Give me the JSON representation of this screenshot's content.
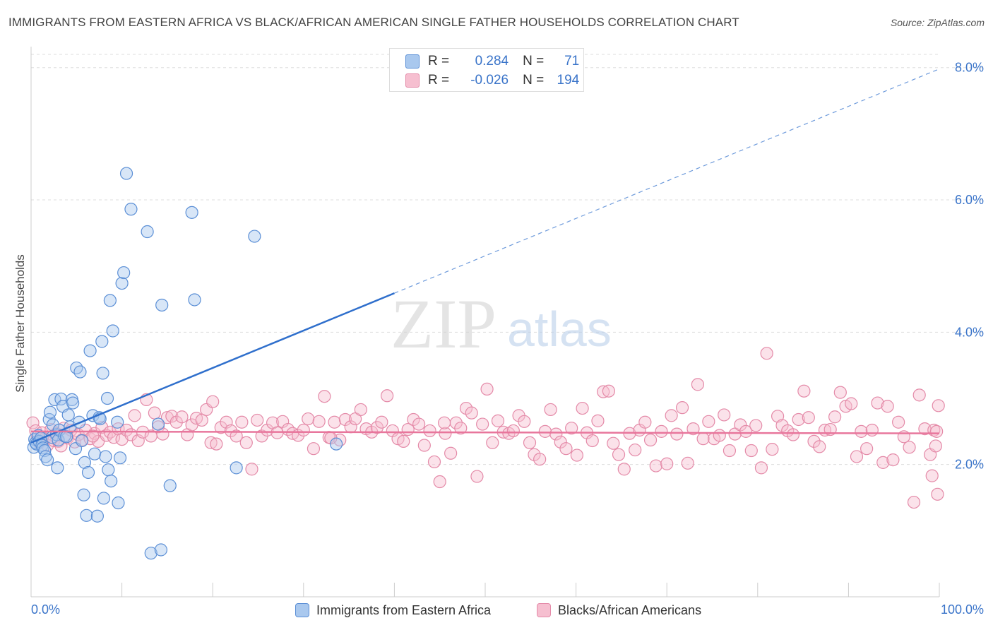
{
  "title": "IMMIGRANTS FROM EASTERN AFRICA VS BLACK/AFRICAN AMERICAN SINGLE FATHER HOUSEHOLDS CORRELATION CHART",
  "source": "Source: ZipAtlas.com",
  "watermark": {
    "zip": "ZIP",
    "atlas": "atlas"
  },
  "colors": {
    "blue_fill": "#a9c8ee",
    "blue_stroke": "#5b8fd6",
    "blue_line": "#2f6fcc",
    "pink_fill": "#f6bfd0",
    "pink_stroke": "#e48aa8",
    "pink_line": "#e8769c",
    "axis_label": "#3a74c9",
    "grid": "#dddddd"
  },
  "stats": {
    "blue": {
      "r_label": "R =",
      "r_value": "0.284",
      "n_label": "N =",
      "n_value": "71"
    },
    "pink": {
      "r_label": "R =",
      "r_value": "-0.026",
      "n_label": "N =",
      "n_value": "194"
    }
  },
  "chart_data": {
    "type": "scatter",
    "title": "IMMIGRANTS FROM EASTERN AFRICA VS BLACK/AFRICAN AMERICAN SINGLE FATHER HOUSEHOLDS CORRELATION CHART",
    "xlabel": "",
    "ylabel": "Single Father Households",
    "xlim": [
      0,
      100
    ],
    "ylim": [
      0,
      8.2
    ],
    "x_tick_labels": [
      "0.0%",
      "100.0%"
    ],
    "y_ticks": [
      2,
      4,
      6,
      8
    ],
    "y_tick_labels": [
      "2.0%",
      "4.0%",
      "6.0%",
      "8.0%"
    ],
    "grid": "horizontal dashed",
    "legend": "bottom",
    "series": [
      {
        "name": "Immigrants from Eastern Africa",
        "color": "#5b8fd6",
        "trend": {
          "x": [
            0,
            100
          ],
          "y": [
            2.33,
            7.98
          ],
          "solid_until_x": 40
        },
        "points": [
          [
            0.3,
            2.26
          ],
          [
            0.4,
            2.38
          ],
          [
            0.5,
            2.33
          ],
          [
            0.6,
            2.31
          ],
          [
            0.8,
            2.44
          ],
          [
            0.9,
            2.35
          ],
          [
            1.1,
            2.4
          ],
          [
            1.2,
            2.29
          ],
          [
            1.3,
            2.25
          ],
          [
            1.5,
            2.21
          ],
          [
            1.6,
            2.12
          ],
          [
            1.8,
            2.07
          ],
          [
            2.0,
            2.68
          ],
          [
            2.1,
            2.79
          ],
          [
            2.3,
            2.41
          ],
          [
            2.4,
            2.6
          ],
          [
            2.6,
            2.98
          ],
          [
            2.8,
            2.45
          ],
          [
            3.0,
            2.37
          ],
          [
            3.1,
            2.52
          ],
          [
            2.9,
            1.95
          ],
          [
            3.3,
            2.99
          ],
          [
            3.5,
            2.88
          ],
          [
            3.7,
            2.43
          ],
          [
            3.9,
            2.42
          ],
          [
            4.1,
            2.75
          ],
          [
            4.3,
            2.57
          ],
          [
            4.5,
            2.98
          ],
          [
            4.6,
            2.93
          ],
          [
            4.9,
            2.24
          ],
          [
            5.0,
            3.46
          ],
          [
            5.3,
            2.64
          ],
          [
            5.4,
            3.4
          ],
          [
            5.6,
            2.36
          ],
          [
            5.8,
            1.54
          ],
          [
            5.9,
            2.03
          ],
          [
            6.1,
            1.23
          ],
          [
            6.3,
            1.88
          ],
          [
            6.5,
            3.72
          ],
          [
            6.8,
            2.74
          ],
          [
            7.0,
            2.16
          ],
          [
            7.3,
            1.22
          ],
          [
            7.5,
            2.71
          ],
          [
            7.6,
            2.69
          ],
          [
            7.8,
            3.86
          ],
          [
            7.9,
            3.38
          ],
          [
            8.0,
            1.49
          ],
          [
            8.2,
            2.12
          ],
          [
            8.4,
            3.0
          ],
          [
            8.5,
            1.92
          ],
          [
            8.7,
            4.48
          ],
          [
            8.8,
            1.75
          ],
          [
            9.0,
            4.02
          ],
          [
            9.5,
            2.64
          ],
          [
            9.6,
            1.42
          ],
          [
            9.8,
            2.1
          ],
          [
            10.0,
            4.74
          ],
          [
            10.2,
            4.9
          ],
          [
            10.5,
            6.4
          ],
          [
            11.0,
            5.86
          ],
          [
            12.8,
            5.52
          ],
          [
            13.2,
            0.66
          ],
          [
            14.0,
            2.61
          ],
          [
            14.3,
            0.71
          ],
          [
            14.4,
            4.41
          ],
          [
            15.3,
            1.68
          ],
          [
            17.7,
            5.81
          ],
          [
            18.0,
            4.49
          ],
          [
            22.6,
            1.95
          ],
          [
            24.6,
            5.45
          ],
          [
            33.6,
            2.31
          ]
        ]
      },
      {
        "name": "Blacks/African Americans",
        "color": "#e48aa8",
        "trend": {
          "x": [
            0,
            100
          ],
          "y": [
            2.5,
            2.47
          ]
        },
        "points": [
          [
            0.2,
            2.63
          ],
          [
            0.5,
            2.51
          ],
          [
            0.7,
            2.42
          ],
          [
            0.9,
            2.33
          ],
          [
            1.2,
            2.48
          ],
          [
            1.5,
            2.39
          ],
          [
            1.8,
            2.29
          ],
          [
            2.2,
            2.53
          ],
          [
            2.5,
            2.36
          ],
          [
            2.8,
            2.47
          ],
          [
            3.0,
            2.35
          ],
          [
            3.3,
            2.28
          ],
          [
            3.6,
            2.55
          ],
          [
            4.0,
            2.4
          ],
          [
            4.4,
            2.52
          ],
          [
            4.8,
            2.34
          ],
          [
            5.2,
            2.45
          ],
          [
            5.6,
            2.37
          ],
          [
            6.0,
            2.52
          ],
          [
            6.5,
            2.39
          ],
          [
            7.0,
            2.47
          ],
          [
            7.4,
            2.35
          ],
          [
            7.8,
            2.56
          ],
          [
            8.3,
            2.44
          ],
          [
            8.7,
            2.49
          ],
          [
            9.1,
            2.41
          ],
          [
            9.6,
            2.54
          ],
          [
            10.0,
            2.38
          ],
          [
            10.5,
            2.52
          ],
          [
            11.0,
            2.45
          ],
          [
            11.4,
            2.74
          ],
          [
            11.8,
            2.36
          ],
          [
            12.3,
            2.49
          ],
          [
            12.7,
            2.98
          ],
          [
            13.2,
            2.43
          ],
          [
            13.6,
            2.78
          ],
          [
            14.0,
            2.57
          ],
          [
            14.5,
            2.46
          ],
          [
            15.0,
            2.71
          ],
          [
            15.5,
            2.73
          ],
          [
            16.0,
            2.64
          ],
          [
            16.6,
            2.72
          ],
          [
            17.2,
            2.45
          ],
          [
            17.7,
            2.6
          ],
          [
            18.2,
            2.7
          ],
          [
            18.8,
            2.67
          ],
          [
            19.3,
            2.83
          ],
          [
            19.8,
            2.33
          ],
          [
            20.4,
            2.31
          ],
          [
            20.9,
            2.56
          ],
          [
            21.5,
            2.64
          ],
          [
            22.0,
            2.51
          ],
          [
            22.6,
            2.43
          ],
          [
            23.2,
            2.64
          ],
          [
            23.7,
            2.33
          ],
          [
            24.3,
            1.93
          ],
          [
            24.9,
            2.67
          ],
          [
            25.4,
            2.43
          ],
          [
            26.0,
            2.52
          ],
          [
            26.6,
            2.63
          ],
          [
            27.1,
            2.48
          ],
          [
            27.7,
            2.65
          ],
          [
            28.3,
            2.53
          ],
          [
            28.8,
            2.47
          ],
          [
            29.4,
            2.44
          ],
          [
            30.0,
            2.52
          ],
          [
            30.5,
            2.69
          ],
          [
            31.1,
            2.24
          ],
          [
            31.7,
            2.65
          ],
          [
            32.3,
            3.03
          ],
          [
            32.8,
            2.41
          ],
          [
            33.4,
            2.64
          ],
          [
            34.0,
            2.37
          ],
          [
            34.6,
            2.68
          ],
          [
            35.2,
            2.57
          ],
          [
            35.7,
            2.69
          ],
          [
            36.3,
            2.83
          ],
          [
            36.9,
            2.54
          ],
          [
            37.5,
            2.49
          ],
          [
            38.1,
            2.56
          ],
          [
            38.6,
            2.64
          ],
          [
            39.2,
            3.04
          ],
          [
            39.8,
            2.51
          ],
          [
            40.4,
            2.39
          ],
          [
            41.0,
            2.35
          ],
          [
            41.5,
            2.53
          ],
          [
            42.1,
            2.68
          ],
          [
            42.7,
            2.61
          ],
          [
            43.3,
            2.29
          ],
          [
            43.9,
            2.51
          ],
          [
            44.4,
            2.04
          ],
          [
            45.0,
            1.74
          ],
          [
            45.6,
            2.47
          ],
          [
            46.2,
            2.17
          ],
          [
            46.8,
            2.63
          ],
          [
            47.3,
            2.55
          ],
          [
            47.9,
            2.85
          ],
          [
            48.5,
            2.78
          ],
          [
            49.1,
            1.82
          ],
          [
            49.7,
            2.61
          ],
          [
            50.2,
            3.14
          ],
          [
            50.8,
            2.33
          ],
          [
            51.4,
            2.66
          ],
          [
            52.0,
            2.49
          ],
          [
            52.6,
            2.47
          ],
          [
            53.1,
            2.51
          ],
          [
            53.7,
            2.74
          ],
          [
            54.3,
            2.65
          ],
          [
            54.9,
            2.33
          ],
          [
            55.4,
            2.15
          ],
          [
            56.0,
            2.08
          ],
          [
            56.6,
            2.5
          ],
          [
            57.2,
            2.83
          ],
          [
            57.8,
            2.46
          ],
          [
            58.3,
            2.34
          ],
          [
            58.9,
            2.24
          ],
          [
            59.5,
            2.55
          ],
          [
            60.1,
            2.14
          ],
          [
            60.7,
            2.85
          ],
          [
            61.2,
            2.48
          ],
          [
            61.8,
            2.36
          ],
          [
            62.4,
            2.66
          ],
          [
            63.0,
            3.1
          ],
          [
            63.6,
            3.11
          ],
          [
            64.1,
            2.32
          ],
          [
            64.7,
            2.15
          ],
          [
            65.3,
            1.93
          ],
          [
            65.9,
            2.47
          ],
          [
            66.5,
            2.22
          ],
          [
            67.0,
            2.52
          ],
          [
            67.6,
            2.64
          ],
          [
            68.2,
            2.37
          ],
          [
            68.8,
            1.98
          ],
          [
            69.4,
            2.5
          ],
          [
            70.0,
            2.01
          ],
          [
            70.5,
            2.74
          ],
          [
            71.1,
            2.46
          ],
          [
            71.7,
            2.86
          ],
          [
            72.3,
            2.02
          ],
          [
            72.9,
            2.54
          ],
          [
            73.4,
            3.21
          ],
          [
            74.0,
            2.39
          ],
          [
            74.6,
            2.65
          ],
          [
            75.2,
            2.39
          ],
          [
            75.8,
            2.44
          ],
          [
            76.3,
            2.75
          ],
          [
            76.9,
            2.21
          ],
          [
            77.5,
            2.46
          ],
          [
            78.1,
            2.6
          ],
          [
            78.7,
            2.5
          ],
          [
            79.3,
            2.21
          ],
          [
            79.8,
            2.59
          ],
          [
            80.4,
            1.95
          ],
          [
            81.0,
            3.68
          ],
          [
            81.6,
            2.23
          ],
          [
            82.2,
            2.73
          ],
          [
            82.7,
            2.59
          ],
          [
            83.3,
            2.51
          ],
          [
            83.9,
            2.45
          ],
          [
            84.5,
            2.68
          ],
          [
            85.1,
            3.11
          ],
          [
            85.6,
            2.71
          ],
          [
            86.2,
            2.35
          ],
          [
            86.8,
            2.27
          ],
          [
            87.4,
            2.52
          ],
          [
            88.0,
            2.53
          ],
          [
            88.5,
            2.72
          ],
          [
            89.1,
            3.09
          ],
          [
            89.7,
            2.88
          ],
          [
            90.3,
            2.92
          ],
          [
            90.9,
            2.12
          ],
          [
            91.4,
            2.5
          ],
          [
            92.0,
            2.24
          ],
          [
            92.6,
            2.52
          ],
          [
            93.2,
            2.93
          ],
          [
            93.8,
            2.03
          ],
          [
            94.3,
            2.88
          ],
          [
            94.9,
            2.07
          ],
          [
            95.5,
            2.64
          ],
          [
            96.1,
            2.42
          ],
          [
            96.7,
            2.26
          ],
          [
            97.2,
            1.43
          ],
          [
            97.8,
            3.05
          ],
          [
            98.4,
            2.54
          ],
          [
            99.0,
            2.15
          ],
          [
            99.2,
            1.83
          ],
          [
            99.4,
            2.52
          ],
          [
            99.6,
            2.28
          ],
          [
            99.7,
            2.5
          ],
          [
            99.8,
            1.55
          ],
          [
            99.9,
            2.89
          ],
          [
            45.5,
            2.63
          ],
          [
            33.0,
            2.4
          ],
          [
            20.0,
            2.95
          ],
          [
            6.8,
            2.43
          ]
        ]
      }
    ]
  }
}
